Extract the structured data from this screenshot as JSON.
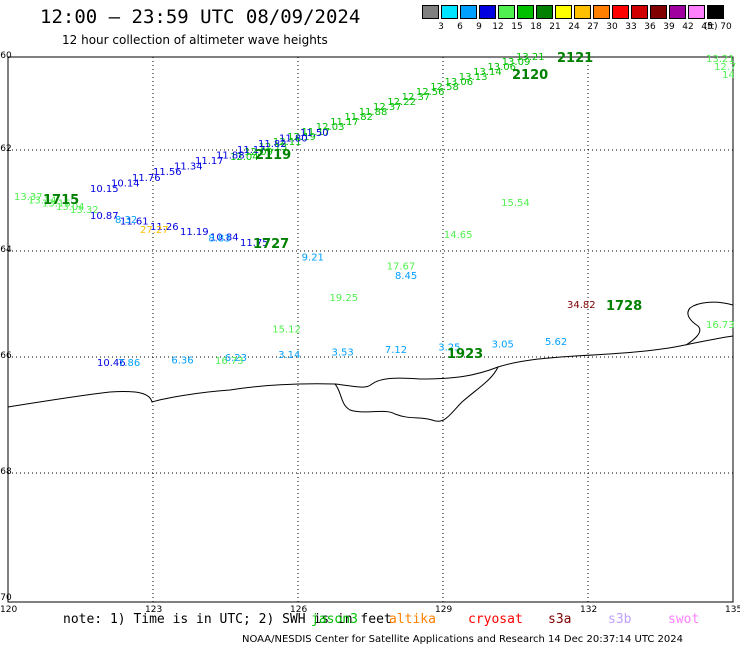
{
  "header": {
    "title": "12:00 — 23:59 UTC 08/09/2024",
    "subtitle": "12 hour collection of altimeter wave heights"
  },
  "colorbar": {
    "unit": "(ft)",
    "colors": [
      "#808080",
      "#00e5ff",
      "#00a0ff",
      "#0000e0",
      "#50f050",
      "#00c000",
      "#008000",
      "#ffff00",
      "#ffc000",
      "#ff8000",
      "#ff0000",
      "#d00000",
      "#800000",
      "#a000a0",
      "#ff80ff",
      "#000000"
    ],
    "labels": [
      "3",
      "6",
      "9",
      "12",
      "15",
      "18",
      "21",
      "24",
      "27",
      "30",
      "33",
      "36",
      "39",
      "42",
      "45",
      "70"
    ]
  },
  "axes": {
    "x_ticks": [
      "120",
      "123",
      "126",
      "129",
      "132",
      "135"
    ],
    "y_ticks": [
      "-60",
      "-62",
      "-64",
      "-66",
      "-68",
      "-70"
    ],
    "grid": "dotted"
  },
  "tracks": [
    {
      "color": "#00c000",
      "labels": [
        "13.21",
        "13.09",
        "13.06",
        "13.14",
        "13.13",
        "13.06",
        "12.58",
        "12.56",
        "12.37",
        "12.22",
        "12.37",
        "11.88",
        "11.82",
        "11.17",
        "12.03",
        "11.17",
        "12.19",
        "12.11",
        "12.13",
        "12.09",
        "12.04"
      ]
    },
    {
      "color": "#0000e0",
      "labels": [
        "11.50",
        "11.80",
        "11.82",
        "11.17",
        "11.88",
        "11.17",
        "11.34",
        "11.56",
        "11.76",
        "10.14",
        "10.15"
      ]
    },
    {
      "color": "#50f050",
      "labels": [
        "13.37",
        "13.14",
        "13.16",
        "13.04",
        "13.32"
      ]
    },
    {
      "color": "#0000e0",
      "labels": [
        "10.87",
        "11.61",
        "11.26",
        "11.19",
        "10.84",
        "11.75"
      ]
    },
    {
      "color": "#00a0ff",
      "labels": [
        "8.32",
        "8.83",
        "9.21",
        "8.45"
      ]
    },
    {
      "color": "#ffc000",
      "labels": [
        "27.27"
      ]
    },
    {
      "color": "#0000e0",
      "labels": [
        "10.46"
      ]
    },
    {
      "color": "#00a0ff",
      "labels": [
        "7.86",
        "6.36",
        "6.23",
        "3.14",
        "3.53",
        "7.12",
        "3.25",
        "3.05",
        "5.62"
      ]
    },
    {
      "color": "#50f050",
      "labels": [
        "16.73",
        "15.12",
        "19.25",
        "17.67",
        "14.65",
        "15.54",
        "16.73",
        "13.21",
        "12.7",
        "14"
      ]
    },
    {
      "color": "#800000",
      "labels": [
        "34.82"
      ]
    }
  ],
  "pass_ids": [
    "2121",
    "2120",
    "2119",
    "1727",
    "1728",
    "1923",
    "1715"
  ],
  "footer": {
    "note": "note: 1) Time is in UTC; 2) SWH is in feet",
    "satellites": [
      {
        "name": "jason3",
        "color": "#00c000"
      },
      {
        "name": "altika",
        "color": "#ff8000"
      },
      {
        "name": "cryosat",
        "color": "#ff0000"
      },
      {
        "name": "s3a",
        "color": "#800000"
      },
      {
        "name": "s3b",
        "color": "#c0a0ff"
      },
      {
        "name": "swot",
        "color": "#ff80ff"
      }
    ],
    "credit": "NOAA/NESDIS Center for Satellite Applications and Research   14 Dec 20:37:14 UTC 2024"
  }
}
